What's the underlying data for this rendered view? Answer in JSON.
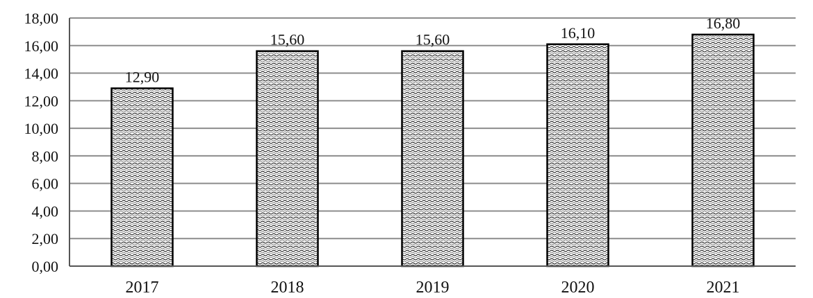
{
  "chart_data": {
    "type": "bar",
    "categories": [
      "2017",
      "2018",
      "2019",
      "2020",
      "2021"
    ],
    "values": [
      12.9,
      15.6,
      15.6,
      16.1,
      16.8
    ],
    "value_labels": [
      "12,90",
      "15,60",
      "15,60",
      "16,10",
      "16,80"
    ],
    "yticks": [
      "0,00",
      "2,00",
      "4,00",
      "6,00",
      "8,00",
      "10,00",
      "12,00",
      "14,00",
      "16,00",
      "18,00"
    ],
    "ylim": [
      0,
      18
    ],
    "ytick_step": 2,
    "grid": true,
    "legend": false,
    "bar_pattern": "wavy-dots"
  }
}
